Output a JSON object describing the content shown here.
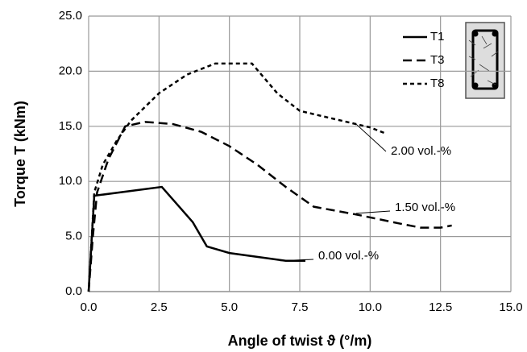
{
  "chart_data": {
    "type": "line",
    "xlabel": "Angle of twist ϑ (°/m)",
    "ylabel": "Torque T (kNm)",
    "xlim": [
      0,
      15
    ],
    "ylim": [
      0,
      25
    ],
    "xticks": [
      {
        "value": 0,
        "label": "0.0"
      },
      {
        "value": 2.5,
        "label": "2.5"
      },
      {
        "value": 5,
        "label": "5.0"
      },
      {
        "value": 7.5,
        "label": "7.5"
      },
      {
        "value": 10,
        "label": "10.0"
      },
      {
        "value": 12.5,
        "label": "12.5"
      },
      {
        "value": 15,
        "label": "15.0"
      }
    ],
    "yticks": [
      {
        "value": 0,
        "label": "0.0"
      },
      {
        "value": 5,
        "label": "5.0"
      },
      {
        "value": 10,
        "label": "10.0"
      },
      {
        "value": 15,
        "label": "15.0"
      },
      {
        "value": 20,
        "label": "20.0"
      },
      {
        "value": 25,
        "label": "25.0"
      }
    ],
    "grid": true,
    "legend": "upper right",
    "series": [
      {
        "name": "T1",
        "color": "#000000",
        "dash": "solid",
        "x": [
          0,
          0.2,
          2.6,
          3.7,
          4.2,
          5,
          7,
          7.7
        ],
        "values": [
          0,
          8.7,
          9.5,
          6.3,
          4.1,
          3.5,
          2.8,
          2.8
        ]
      },
      {
        "name": "T3",
        "color": "#000000",
        "dash": "dashed",
        "x": [
          0,
          0.15,
          0.3,
          0.7,
          1.3,
          2,
          3,
          4,
          5,
          6,
          7,
          8,
          9.5,
          11,
          11.8,
          12.5,
          12.9
        ],
        "values": [
          0,
          5,
          9,
          12,
          15,
          15.4,
          15.2,
          14.5,
          13.2,
          11.5,
          9.5,
          7.7,
          7,
          6.2,
          5.8,
          5.8,
          6
        ]
      },
      {
        "name": "T8",
        "color": "#000000",
        "dash": "dotted",
        "x": [
          0,
          0.2,
          0.5,
          1,
          1.5,
          2.5,
          3.5,
          4.5,
          5.8,
          6.7,
          7.5,
          9,
          10,
          10.5
        ],
        "values": [
          0,
          9,
          11.5,
          13.7,
          15.5,
          18,
          19.7,
          20.7,
          20.7,
          18,
          16.4,
          15.5,
          14.9,
          14.4
        ]
      }
    ],
    "annotations": [
      "2.00 vol.-%",
      "1.50 vol.-%",
      "0.00 vol.-%"
    ]
  }
}
